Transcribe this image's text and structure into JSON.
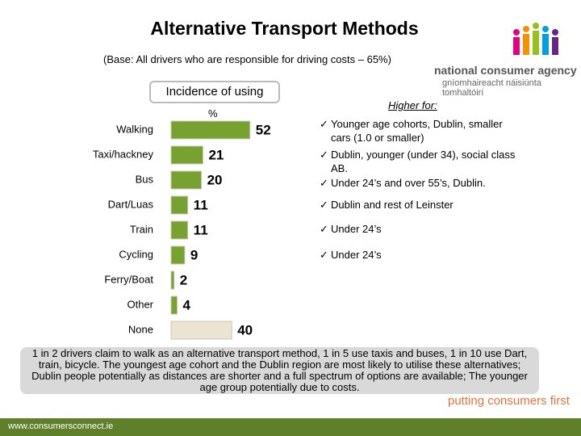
{
  "title": "Alternative Transport Methods",
  "base": "(Base:  All drivers who are responsible for driving costs – 65%)",
  "logo": {
    "name": "national consumer agency",
    "irish": "gníomhaireacht náisiúnta tomhaltóirí"
  },
  "chart_data": {
    "type": "bar",
    "orientation": "horizontal",
    "title": "Incidence of using",
    "unit": "%",
    "categories": [
      "Walking",
      "Taxi/hackney",
      "Bus",
      "Dart/Luas",
      "Train",
      "Cycling",
      "Ferry/Boat",
      "Other",
      "None"
    ],
    "values": [
      52,
      21,
      20,
      11,
      11,
      9,
      2,
      4,
      40
    ],
    "colors": [
      "#77a22f",
      "#77a22f",
      "#77a22f",
      "#77a22f",
      "#77a22f",
      "#77a22f",
      "#77a22f",
      "#77a22f",
      "#ece4d2"
    ]
  },
  "higher_for": {
    "title": "Higher for:",
    "notes": [
      "Younger age cohorts, Dublin, smaller cars (1.0 or smaller)",
      "Dublin, younger (under 34), social class AB.",
      "Under 24’s and over 55’s, Dublin.",
      "Dublin and rest of Leinster",
      "Under 24’s",
      "Under 24’s"
    ]
  },
  "summary": "1 in 2 drivers claim to walk as an alternative transport method, 1 in 5 use taxis and buses, 1 in 10 use Dart, train, bicycle. The youngest age cohort and the Dublin region are most likely to utilise these alternatives; Dublin people potentially as distances are shorter and a full spectrum of options are available; The younger age group potentially due to costs.",
  "tagline": "putting consumers first",
  "footer": "www.consumersconnect.ie"
}
